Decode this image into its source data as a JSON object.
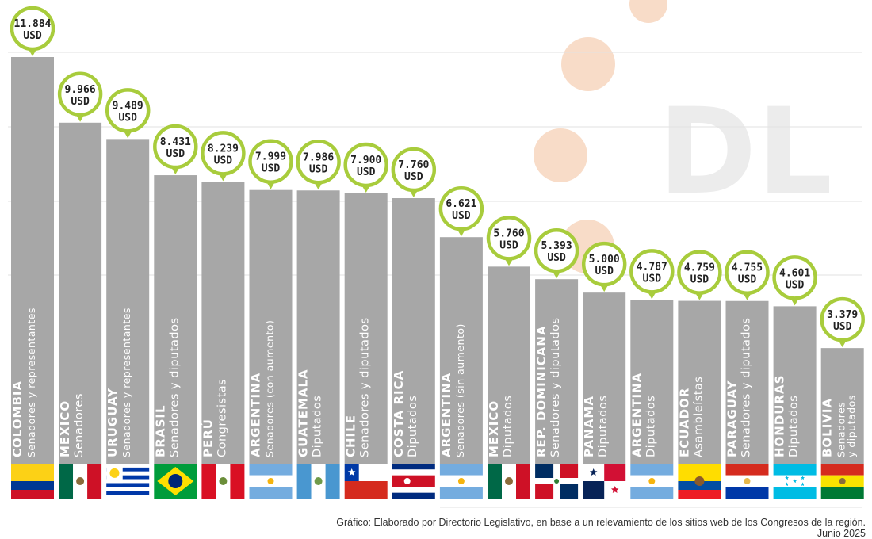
{
  "chart_data": {
    "type": "bar",
    "title": "",
    "xlabel": "",
    "ylabel": "",
    "ylim": [
      0,
      12500
    ],
    "unit": "USD",
    "watermark": "DL",
    "colors": {
      "bar": "#a7a7a7",
      "bubble_ring": "#a8cc3c",
      "grid": "#e2e2e2",
      "label_text": "#ffffff",
      "watermark": "#ececec",
      "circles": "#f8dcc8"
    },
    "categories": [
      {
        "country": "COLOMBIA",
        "chamber": "Senadores y representantes",
        "value": 11884,
        "value_label": "11.884",
        "flag": "colombia-flag"
      },
      {
        "country": "MÉXICO",
        "chamber": "Senadores",
        "value": 9966,
        "value_label": "9.966",
        "flag": "mexico-flag"
      },
      {
        "country": "URUGUAY",
        "chamber": "Senadores y representantes",
        "value": 9489,
        "value_label": "9.489",
        "flag": "uruguay-flag"
      },
      {
        "country": "BRASIL",
        "chamber": "Senadores y diputados",
        "value": 8431,
        "value_label": "8.431",
        "flag": "brazil-flag"
      },
      {
        "country": "PERÚ",
        "chamber": "Congresistas",
        "value": 8239,
        "value_label": "8.239",
        "flag": "peru-flag"
      },
      {
        "country": "ARGENTINA",
        "chamber": "Senadores (con aumento)",
        "value": 7999,
        "value_label": "7.999",
        "flag": "argentina-flag"
      },
      {
        "country": "GUATEMALA",
        "chamber": "Diputados",
        "value": 7986,
        "value_label": "7.986",
        "flag": "guatemala-flag"
      },
      {
        "country": "CHILE",
        "chamber": "Senadores y diputados",
        "value": 7900,
        "value_label": "7.900",
        "flag": "chile-flag"
      },
      {
        "country": "COSTA RICA",
        "chamber": "Diputados",
        "value": 7760,
        "value_label": "7.760",
        "flag": "costa-rica-flag"
      },
      {
        "country": "ARGENTINA",
        "chamber": "Senadores (sin aumento)",
        "value": 6621,
        "value_label": "6.621",
        "flag": "argentina-flag"
      },
      {
        "country": "MÉXICO",
        "chamber": "Diputados",
        "value": 5760,
        "value_label": "5.760",
        "flag": "mexico-flag"
      },
      {
        "country": "REP. DOMINICANA",
        "chamber": "Senadores y diputados",
        "value": 5393,
        "value_label": "5.393",
        "flag": "dominican-republic-flag"
      },
      {
        "country": "PANAMÁ",
        "chamber": "Diputados",
        "value": 5000,
        "value_label": "5.000",
        "flag": "panama-flag"
      },
      {
        "country": "ARGENTINA",
        "chamber": "Diputados",
        "value": 4787,
        "value_label": "4.787",
        "flag": "argentina-flag"
      },
      {
        "country": "ECUADOR",
        "chamber": "Asambleístas",
        "value": 4759,
        "value_label": "4.759",
        "flag": "ecuador-flag"
      },
      {
        "country": "PARAGUAY",
        "chamber": "Senadores y diputados",
        "value": 4755,
        "value_label": "4.755",
        "flag": "paraguay-flag"
      },
      {
        "country": "HONDURAS",
        "chamber": "Diputados",
        "value": 4601,
        "value_label": "4.601",
        "flag": "honduras-flag"
      },
      {
        "country": "BOLIVIA",
        "chamber": "Senadores\ny diputados",
        "value": 3379,
        "value_label": "3.379",
        "flag": "bolivia-flag"
      }
    ]
  },
  "footer": {
    "source": "Gráfico: Elaborado por Directorio Legislativo, en base a un relevamiento de los sitios web de los Congresos de la región.",
    "date": "Junio 2025"
  }
}
